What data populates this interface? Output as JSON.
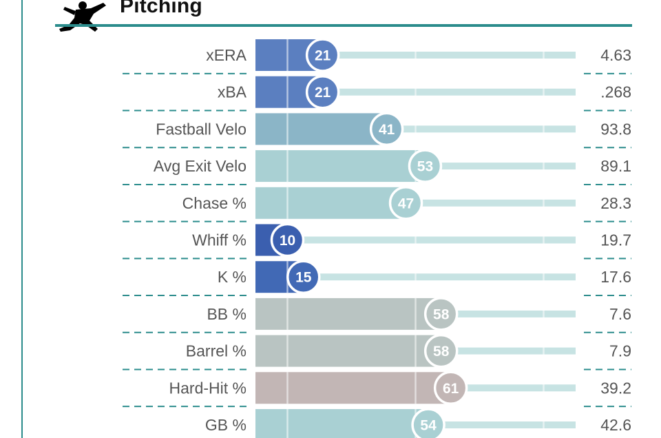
{
  "section": {
    "title": "Pitching",
    "icon": "pitcher-silhouette-icon"
  },
  "colors": {
    "accent": "#2b8c8c",
    "track": "#c7e3e3",
    "label_text": "#555555",
    "percentile_scale": {
      "10": "#3b5faf",
      "15": "#4169b5",
      "21": "#5b7fc0",
      "41": "#8bb5c7",
      "47": "#a9d0d3",
      "53": "#a9d0d3",
      "54": "#a9d0d3",
      "58": "#b9c4c2",
      "61": "#c2b6b5"
    }
  },
  "chart_data": {
    "type": "bar",
    "orientation": "horizontal",
    "title": "Pitching",
    "xlim": [
      0,
      100
    ],
    "value_label": "percentile",
    "categories": [
      "xERA",
      "xBA",
      "Fastball Velo",
      "Avg Exit Velo",
      "Chase %",
      "Whiff %",
      "K %",
      "BB %",
      "Barrel %",
      "Hard-Hit %",
      "GB %"
    ],
    "percentiles": [
      21,
      21,
      41,
      53,
      47,
      10,
      15,
      58,
      58,
      61,
      54
    ],
    "stat_values": [
      "4.63",
      ".268",
      "93.8",
      "89.1",
      "28.3",
      "19.7",
      "17.6",
      "7.6",
      "7.9",
      "39.2",
      "42.6"
    ],
    "bar_colors": [
      "#5b7fc0",
      "#5b7fc0",
      "#8bb5c7",
      "#a9d0d3",
      "#a9d0d3",
      "#3b5faf",
      "#4169b5",
      "#b9c4c2",
      "#b9c4c2",
      "#c2b6b5",
      "#a9d0d3"
    ]
  }
}
